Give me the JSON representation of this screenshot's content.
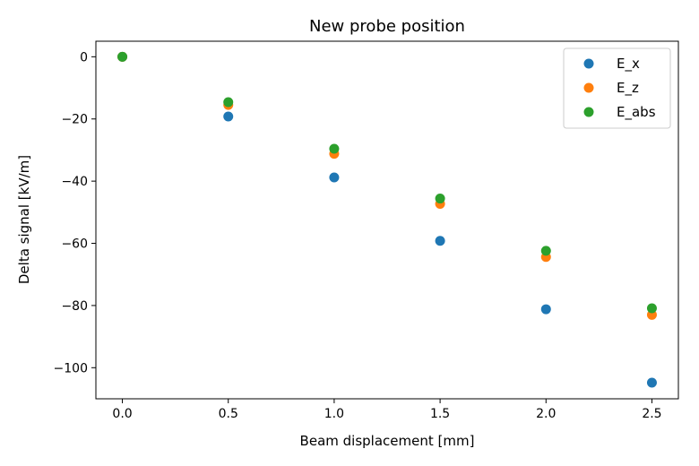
{
  "chart_data": {
    "type": "scatter",
    "title": "New probe position",
    "xlabel": "Beam displacement [mm]",
    "ylabel": "Delta signal [kV/m]",
    "xlim": [
      -0.125,
      2.625
    ],
    "ylim": [
      -110,
      5
    ],
    "xticks": [
      0.0,
      0.5,
      1.0,
      1.5,
      2.0,
      2.5
    ],
    "xtick_labels": [
      "0.0",
      "0.5",
      "1.0",
      "1.5",
      "2.0",
      "2.5"
    ],
    "yticks": [
      0,
      -20,
      -40,
      -60,
      -80,
      -100
    ],
    "ytick_labels": [
      "0",
      "−20",
      "−40",
      "−60",
      "−80",
      "−100"
    ],
    "grid": false,
    "legend_position": "top-right",
    "x": [
      0.0,
      0.5,
      1.0,
      1.5,
      2.0,
      2.5
    ],
    "series": [
      {
        "name": "E_x",
        "color": "#1f77b4",
        "values": [
          0,
          -19.2,
          -38.8,
          -59.2,
          -81.2,
          -104.8
        ]
      },
      {
        "name": "E_z",
        "color": "#ff7f0e",
        "values": [
          0,
          -15.5,
          -31.2,
          -47.3,
          -64.4,
          -83.0
        ]
      },
      {
        "name": "E_abs",
        "color": "#2ca02c",
        "values": [
          0,
          -14.6,
          -29.6,
          -45.6,
          -62.4,
          -80.9
        ]
      }
    ]
  }
}
